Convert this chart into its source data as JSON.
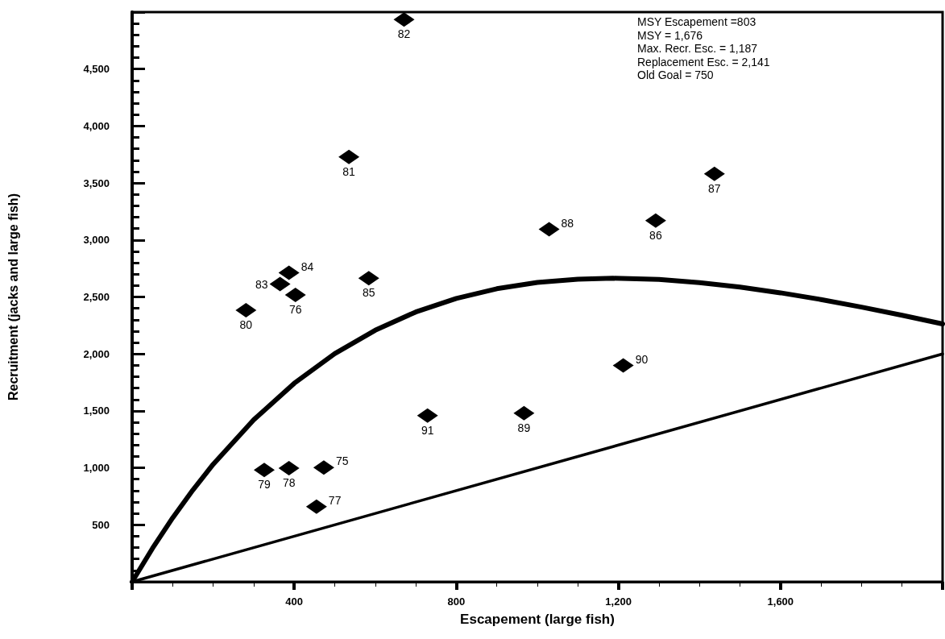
{
  "chart_data": {
    "type": "scatter",
    "xlabel": "Escapement (large fish)",
    "ylabel": "Recruitment (jacks and large fish)",
    "annotations": [
      "MSY Escapement =803",
      "MSY = 1,676",
      "Max. Recr. Esc. = 1,187",
      "Replacement Esc. = 2,141",
      "Old Goal = 750",
      {
        "text": "75",
        "x": 473,
        "y": 1003
      },
      {
        "text": "76",
        "x": 403,
        "y": 2518
      },
      {
        "text": "77",
        "x": 455,
        "y": 660
      },
      {
        "text": "78",
        "x": 387,
        "y": 998
      },
      {
        "text": "79",
        "x": 326,
        "y": 981
      },
      {
        "text": "80",
        "x": 281,
        "y": 2383
      },
      {
        "text": "81",
        "x": 535,
        "y": 3728
      },
      {
        "text": "82",
        "x": 671,
        "y": 4934
      },
      {
        "text": "83",
        "x": 365,
        "y": 2613
      },
      {
        "text": "84",
        "x": 387,
        "y": 2712
      },
      {
        "text": "85",
        "x": 584,
        "y": 2665
      },
      {
        "text": "86",
        "x": 1292,
        "y": 3170
      },
      {
        "text": "87",
        "x": 1437,
        "y": 3580
      },
      {
        "text": "88",
        "x": 1029,
        "y": 3094
      },
      {
        "text": "89",
        "x": 967,
        "y": 1479
      },
      {
        "text": "90",
        "x": 1212,
        "y": 1898
      },
      {
        "text": "91",
        "x": 729,
        "y": 1459
      }
    ],
    "xlim": [
      0,
      2000
    ],
    "xticks": [
      {
        "value": 400,
        "label": "400"
      },
      {
        "value": 800,
        "label": "800"
      },
      {
        "value": 1200,
        "label": "1,200"
      },
      {
        "value": 1600,
        "label": "1,600"
      }
    ],
    "ylim": [
      0,
      5000
    ],
    "yticks": [
      {
        "value": 500,
        "label": "500"
      },
      {
        "value": 1000,
        "label": "1,000"
      },
      {
        "value": 1500,
        "label": "1,500"
      },
      {
        "value": 2000,
        "label": "2,000"
      },
      {
        "value": 2500,
        "label": "2,500"
      },
      {
        "value": 3000,
        "label": "3,000"
      },
      {
        "value": 3500,
        "label": "3,500"
      },
      {
        "value": 4000,
        "label": "4,000"
      },
      {
        "value": 4500,
        "label": "4,500"
      }
    ],
    "grid": false,
    "series": [
      {
        "color": "#000000",
        "marker": "diamond",
        "x": [
          473,
          403,
          455,
          387,
          326,
          281,
          535,
          671,
          365,
          387,
          584,
          1292,
          1437,
          1029,
          967,
          1212,
          729
        ],
        "values": [
          1003,
          2518,
          660,
          998,
          981,
          2383,
          3728,
          4934,
          2613,
          2712,
          2665,
          3170,
          3580,
          3094,
          1479,
          1898,
          1459
        ]
      },
      {
        "type": "line",
        "color": "#000000",
        "marker": "none",
        "line_style": "solid",
        "x": [
          0,
          50,
          100,
          150,
          200,
          300,
          400,
          500,
          600,
          700,
          800,
          900,
          1000,
          1100,
          1187,
          1300,
          1400,
          1500,
          1600,
          1700,
          1800,
          1900,
          2000
        ],
        "values": [
          0,
          292,
          561,
          806,
          1031,
          1421,
          1742,
          2002,
          2208,
          2368,
          2487,
          2572,
          2627,
          2656,
          2664,
          2653,
          2626,
          2586,
          2536,
          2477,
          2411,
          2339,
          2263
        ]
      },
      {
        "type": "line",
        "color": "#000000",
        "marker": "none",
        "line_style": "solid",
        "x": [
          0,
          2000
        ],
        "values": [
          0,
          2000
        ]
      }
    ]
  }
}
